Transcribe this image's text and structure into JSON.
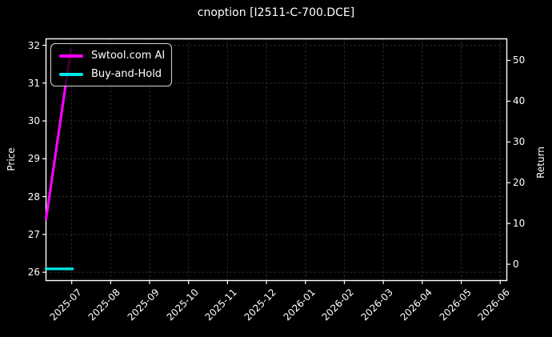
{
  "title": "cnoption [I2511-C-700.DCE]",
  "chart_data": {
    "type": "line",
    "title": "cnoption [I2511-C-700.DCE]",
    "background_color": "#000000",
    "text_color": "#ffffff",
    "spine_color": "#ffffff",
    "x_axis": {
      "tick_labels": [
        "2025-07",
        "2025-08",
        "2025-09",
        "2025-10",
        "2025-11",
        "2025-12",
        "2026-01",
        "2026-02",
        "2026-03",
        "2026-04",
        "2026-05",
        "2026-06"
      ],
      "lim_month_index": [
        -0.66,
        11.17
      ],
      "tick_rotation_deg": 45
    },
    "y_axis_left": {
      "label": "Price",
      "ticks": [
        26,
        27,
        28,
        29,
        30,
        31,
        32
      ],
      "lim": [
        25.78,
        32.17
      ]
    },
    "y_axis_right": {
      "label": "Return",
      "ticks": [
        0,
        10,
        20,
        30,
        40,
        50
      ],
      "lim": [
        -4.0,
        55.3
      ]
    },
    "grid": {
      "show": true,
      "line_style": "dashed",
      "color": "#3a3a3a"
    },
    "legend": {
      "location": "upper left",
      "entries": [
        {
          "label": "Swtool.com AI",
          "color": "#ff00ff"
        },
        {
          "label": "Buy-and-Hold",
          "color": "#00e8e8"
        }
      ]
    },
    "series": [
      {
        "name": "Swtool.com AI",
        "color": "#ff00ff",
        "axis": "left",
        "x_month_index": [
          -0.66,
          -0.02
        ],
        "y_price": [
          27.4,
          31.9
        ],
        "y_right_axis_equivalent": [
          10.5,
          53.0
        ]
      },
      {
        "name": "Buy-and-Hold",
        "color": "#00e8e8",
        "axis": "left",
        "x_month_index": [
          -0.66,
          0.02
        ],
        "y_price": [
          26.09,
          26.09
        ],
        "y_right_axis_equivalent": [
          -1.2,
          -1.2
        ]
      }
    ]
  }
}
